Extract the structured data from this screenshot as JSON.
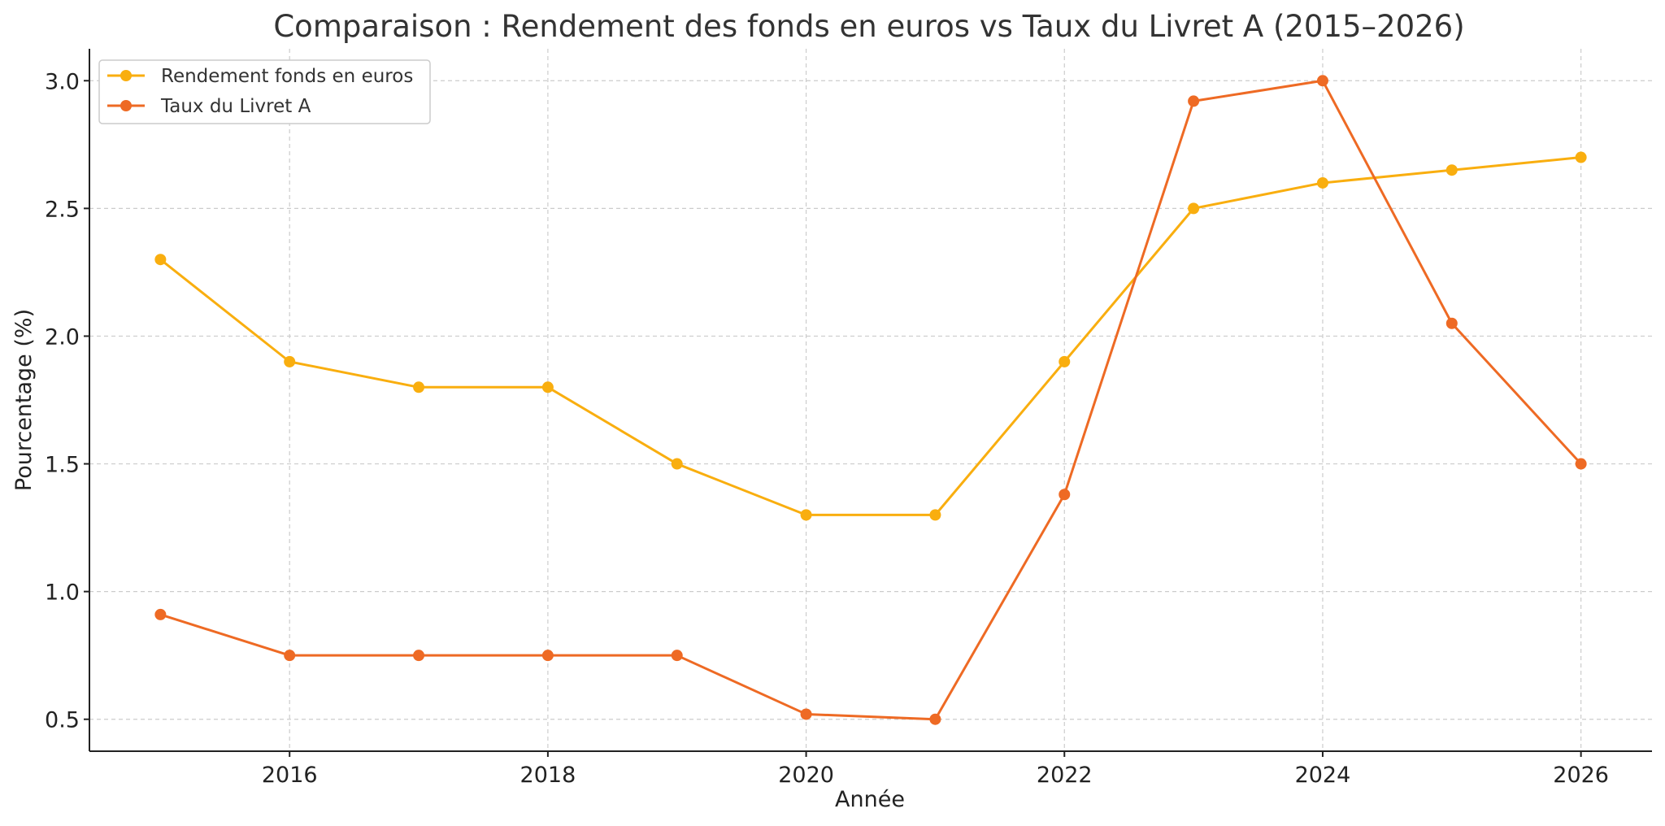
{
  "chart_data": {
    "type": "line",
    "title": "Comparaison : Rendement des fonds en euros vs Taux du Livret A (2015–2026)",
    "xlabel": "Année",
    "ylabel": "Pourcentage (%)",
    "x": [
      2015,
      2016,
      2017,
      2018,
      2019,
      2020,
      2021,
      2022,
      2023,
      2024,
      2025,
      2026
    ],
    "xlim": [
      2014.45,
      2026.55
    ],
    "ylim": [
      0.375,
      3.125
    ],
    "x_ticks": [
      "2016",
      "2018",
      "2020",
      "2022",
      "2024",
      "2026"
    ],
    "y_ticks": [
      "0.5",
      "1.0",
      "1.5",
      "2.0",
      "2.5",
      "3.0"
    ],
    "grid": true,
    "legend_position": "top-left",
    "series": [
      {
        "name": "Rendement fonds en euros",
        "color": "#F9AE0F",
        "marker": "circle",
        "values": [
          2.3,
          1.9,
          1.8,
          1.8,
          1.5,
          1.3,
          1.3,
          1.9,
          2.5,
          2.6,
          2.65,
          2.7
        ]
      },
      {
        "name": "Taux du Livret A",
        "color": "#EE6A24",
        "marker": "circle",
        "values": [
          0.91,
          0.75,
          0.75,
          0.75,
          0.75,
          0.52,
          0.5,
          1.38,
          2.92,
          3.0,
          2.05,
          1.5
        ]
      }
    ]
  }
}
